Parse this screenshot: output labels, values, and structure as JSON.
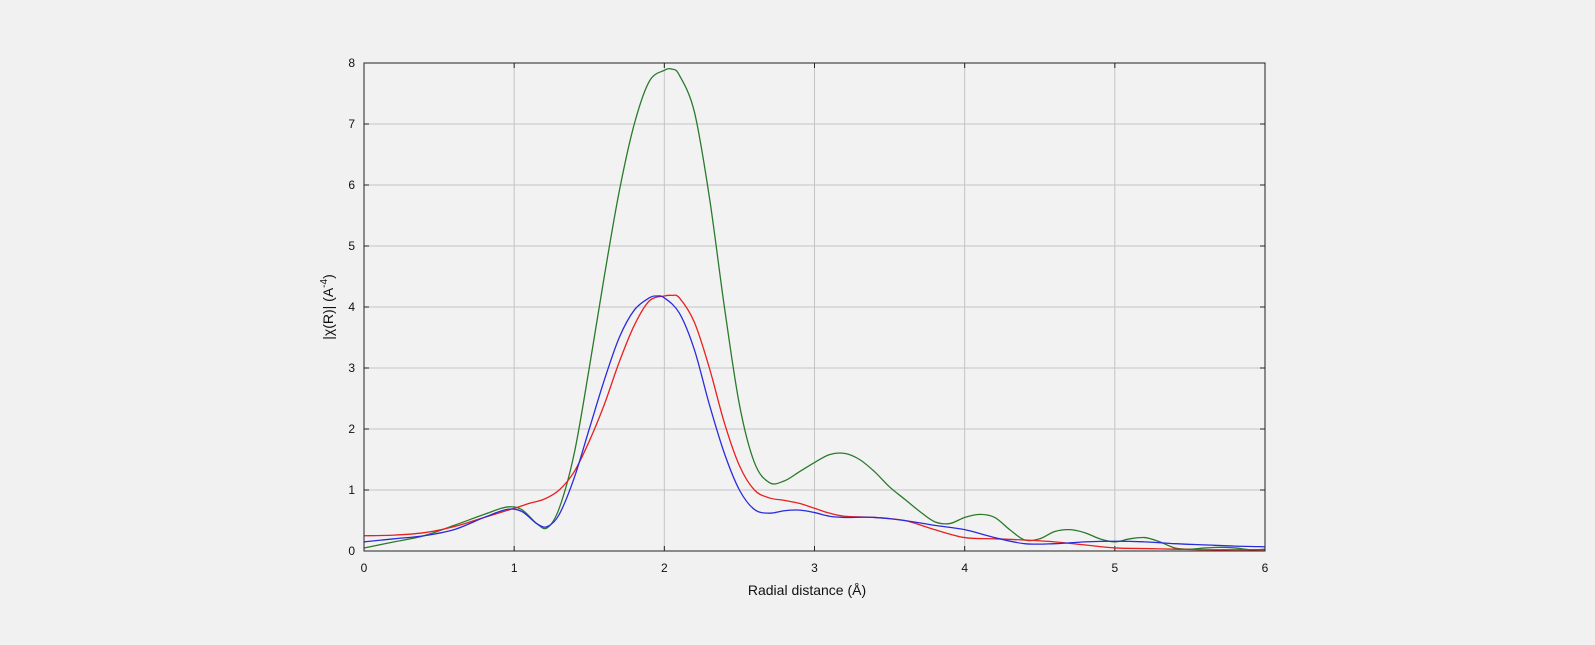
{
  "chart_data": {
    "type": "line",
    "title": "",
    "xlabel": "Radial distance    (Å)",
    "ylabel_main": "|χ(R)|   (A",
    "ylabel_sup": "-4",
    "ylabel_end": ")",
    "xlim": [
      0,
      6
    ],
    "ylim": [
      0,
      8
    ],
    "xticks": [
      0,
      1,
      2,
      3,
      4,
      5,
      6
    ],
    "yticks": [
      0,
      1,
      2,
      3,
      4,
      5,
      6,
      7,
      8
    ],
    "grid": true,
    "legend": "none",
    "series": [
      {
        "color": "#2a7a2a",
        "x": [
          0,
          0.2,
          0.4,
          0.6,
          0.8,
          0.95,
          1.05,
          1.15,
          1.22,
          1.3,
          1.4,
          1.5,
          1.6,
          1.7,
          1.8,
          1.9,
          2.0,
          2.05,
          2.1,
          2.2,
          2.3,
          2.4,
          2.5,
          2.6,
          2.7,
          2.8,
          2.9,
          3.0,
          3.1,
          3.2,
          3.3,
          3.4,
          3.5,
          3.6,
          3.7,
          3.8,
          3.9,
          4.0,
          4.1,
          4.2,
          4.3,
          4.4,
          4.5,
          4.6,
          4.7,
          4.8,
          4.9,
          5.0,
          5.1,
          5.2,
          5.3,
          5.4,
          5.5,
          5.6,
          5.7,
          5.8,
          5.9,
          6.0
        ],
        "y": [
          0.05,
          0.15,
          0.25,
          0.42,
          0.6,
          0.72,
          0.68,
          0.45,
          0.38,
          0.7,
          1.6,
          3.0,
          4.5,
          5.9,
          7.0,
          7.7,
          7.88,
          7.9,
          7.8,
          7.2,
          5.8,
          4.0,
          2.4,
          1.45,
          1.12,
          1.15,
          1.3,
          1.45,
          1.58,
          1.6,
          1.5,
          1.3,
          1.05,
          0.85,
          0.65,
          0.48,
          0.45,
          0.55,
          0.6,
          0.55,
          0.35,
          0.18,
          0.2,
          0.32,
          0.35,
          0.3,
          0.2,
          0.15,
          0.2,
          0.22,
          0.15,
          0.05,
          0.03,
          0.05,
          0.06,
          0.05,
          0.02,
          0.03
        ]
      },
      {
        "color": "#e82020",
        "x": [
          0,
          0.2,
          0.4,
          0.6,
          0.8,
          1.0,
          1.1,
          1.2,
          1.3,
          1.4,
          1.5,
          1.6,
          1.7,
          1.8,
          1.9,
          2.0,
          2.05,
          2.1,
          2.2,
          2.3,
          2.4,
          2.5,
          2.6,
          2.7,
          2.8,
          2.9,
          3.0,
          3.1,
          3.2,
          3.4,
          3.6,
          3.8,
          4.0,
          4.2,
          4.4,
          4.6,
          4.8,
          5.0,
          5.2,
          5.4,
          5.6,
          5.8,
          6.0
        ],
        "y": [
          0.25,
          0.26,
          0.3,
          0.4,
          0.55,
          0.7,
          0.78,
          0.85,
          1.0,
          1.3,
          1.8,
          2.4,
          3.1,
          3.7,
          4.1,
          4.18,
          4.19,
          4.15,
          3.75,
          3.0,
          2.1,
          1.4,
          1.0,
          0.87,
          0.83,
          0.78,
          0.7,
          0.62,
          0.57,
          0.55,
          0.5,
          0.35,
          0.22,
          0.2,
          0.18,
          0.15,
          0.1,
          0.05,
          0.04,
          0.03,
          0.02,
          0.02,
          0.02
        ]
      },
      {
        "color": "#2b2bdc",
        "x": [
          0,
          0.2,
          0.4,
          0.6,
          0.8,
          0.95,
          1.05,
          1.15,
          1.22,
          1.3,
          1.4,
          1.5,
          1.6,
          1.7,
          1.8,
          1.9,
          1.95,
          2.0,
          2.1,
          2.2,
          2.3,
          2.4,
          2.5,
          2.6,
          2.7,
          2.8,
          2.9,
          3.0,
          3.1,
          3.2,
          3.4,
          3.6,
          3.8,
          4.0,
          4.2,
          4.4,
          4.6,
          4.8,
          5.0,
          5.2,
          5.4,
          5.6,
          5.8,
          6.0
        ],
        "y": [
          0.15,
          0.2,
          0.25,
          0.35,
          0.55,
          0.68,
          0.65,
          0.45,
          0.4,
          0.6,
          1.2,
          2.0,
          2.8,
          3.5,
          3.95,
          4.15,
          4.18,
          4.15,
          3.9,
          3.3,
          2.4,
          1.6,
          1.0,
          0.68,
          0.62,
          0.66,
          0.67,
          0.63,
          0.57,
          0.55,
          0.55,
          0.5,
          0.42,
          0.35,
          0.22,
          0.12,
          0.12,
          0.15,
          0.16,
          0.15,
          0.12,
          0.1,
          0.08,
          0.07
        ]
      }
    ]
  }
}
